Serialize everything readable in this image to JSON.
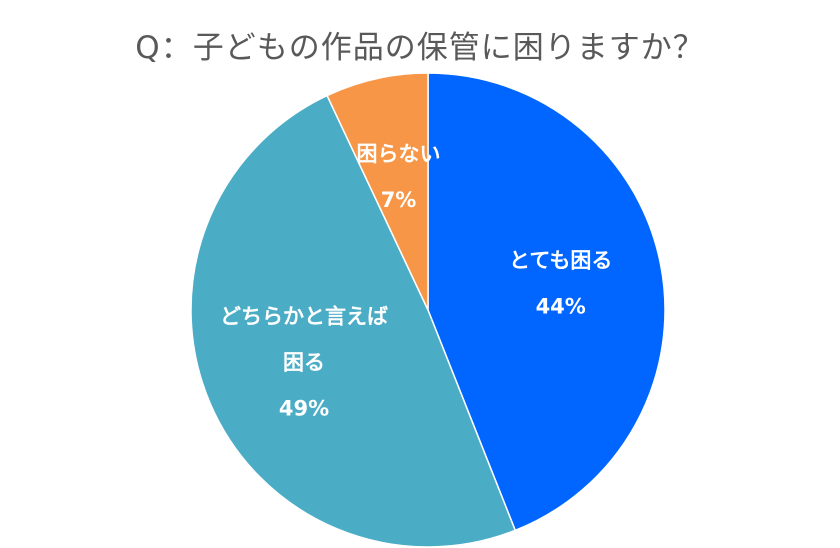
{
  "chart_data": {
    "type": "pie",
    "title": "Q：子どもの作品の保管に困りますか？",
    "start_angle_deg": 0,
    "direction": "clockwise",
    "slices": [
      {
        "label_lines": [
          "とても困る"
        ],
        "label": "とても困る",
        "value": 44,
        "value_label": "44%",
        "color": "#0066FF"
      },
      {
        "label_lines": [
          "どちらかと言えば",
          "困る"
        ],
        "label": "どちらかと言えば困る",
        "value": 49,
        "value_label": "49%",
        "color": "#4BACC6"
      },
      {
        "label_lines": [
          "困らない"
        ],
        "label": "困らない",
        "value": 7,
        "value_label": "7%",
        "color": "#F79646"
      }
    ]
  }
}
